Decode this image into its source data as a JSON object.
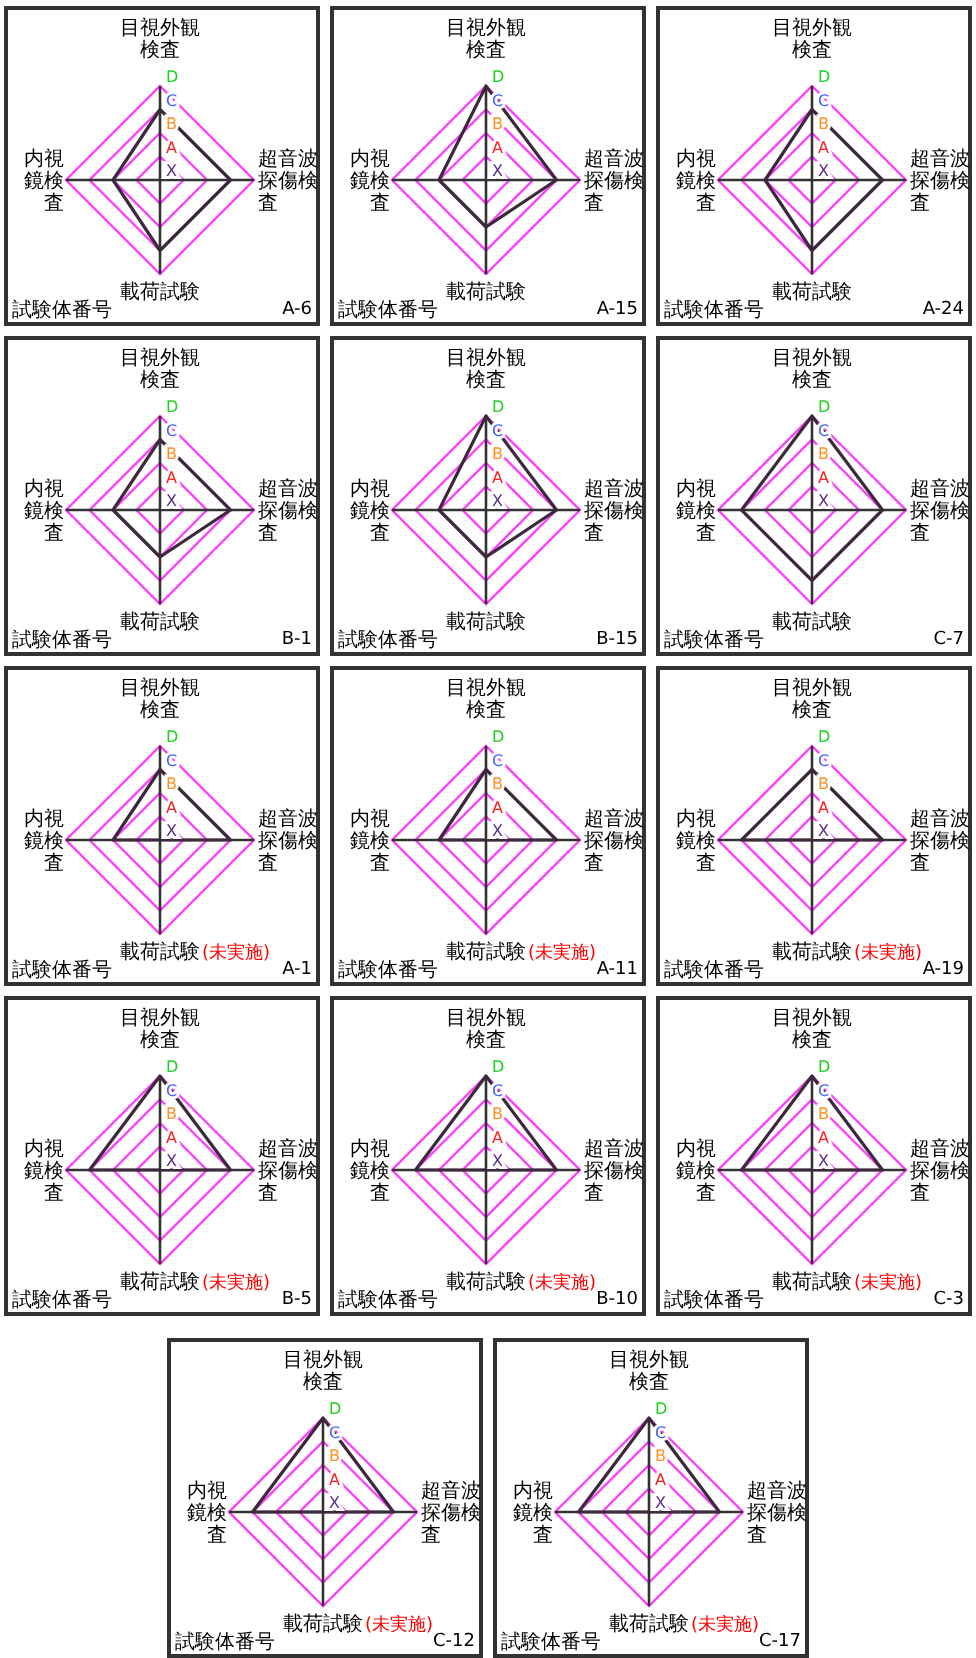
{
  "chart_data": [
    {
      "type": "radar",
      "title": "A-6",
      "categories": [
        "目視外観検査",
        "超音波探傷検査",
        "載荷試験",
        "内視鏡検査"
      ],
      "series": [
        {
          "color": "#3c2a3c",
          "values": [
            3,
            3,
            3,
            2
          ]
        }
      ],
      "ylim": [
        0,
        4
      ],
      "yticks": [
        {
          "value": 0,
          "label": "X"
        },
        {
          "value": 1,
          "label": "A"
        },
        {
          "value": 2,
          "label": "B"
        },
        {
          "value": 3,
          "label": "C"
        },
        {
          "value": 4,
          "label": "D"
        }
      ],
      "grid": true,
      "annotations": [
        "試験体番号"
      ]
    },
    {
      "type": "radar",
      "title": "A-15",
      "categories": [
        "目視外観検査",
        "超音波探傷検査",
        "載荷試験",
        "内視鏡検査"
      ],
      "series": [
        {
          "color": "#3c2a3c",
          "values": [
            4,
            3,
            2,
            2
          ]
        }
      ],
      "ylim": [
        0,
        4
      ],
      "yticks": [
        {
          "value": 0,
          "label": "X"
        },
        {
          "value": 1,
          "label": "A"
        },
        {
          "value": 2,
          "label": "B"
        },
        {
          "value": 3,
          "label": "C"
        },
        {
          "value": 4,
          "label": "D"
        }
      ],
      "grid": true,
      "annotations": [
        "試験体番号"
      ]
    },
    {
      "type": "radar",
      "title": "A-24",
      "categories": [
        "目視外観検査",
        "超音波探傷検査",
        "載荷試験",
        "内視鏡検査"
      ],
      "series": [
        {
          "color": "#3c2a3c",
          "values": [
            3,
            3,
            3,
            2
          ]
        }
      ],
      "ylim": [
        0,
        4
      ],
      "yticks": [
        {
          "value": 0,
          "label": "X"
        },
        {
          "value": 1,
          "label": "A"
        },
        {
          "value": 2,
          "label": "B"
        },
        {
          "value": 3,
          "label": "C"
        },
        {
          "value": 4,
          "label": "D"
        }
      ],
      "grid": true,
      "annotations": [
        "試験体番号"
      ]
    },
    {
      "type": "radar",
      "title": "B-1",
      "categories": [
        "目視外観検査",
        "超音波探傷検査",
        "載荷試験",
        "内視鏡検査"
      ],
      "series": [
        {
          "color": "#3c2a3c",
          "values": [
            3,
            3,
            2,
            2
          ]
        }
      ],
      "ylim": [
        0,
        4
      ],
      "yticks": [
        {
          "value": 0,
          "label": "X"
        },
        {
          "value": 1,
          "label": "A"
        },
        {
          "value": 2,
          "label": "B"
        },
        {
          "value": 3,
          "label": "C"
        },
        {
          "value": 4,
          "label": "D"
        }
      ],
      "grid": true,
      "annotations": [
        "試験体番号"
      ]
    },
    {
      "type": "radar",
      "title": "B-15",
      "categories": [
        "目視外観検査",
        "超音波探傷検査",
        "載荷試験",
        "内視鏡検査"
      ],
      "series": [
        {
          "color": "#3c2a3c",
          "values": [
            4,
            3,
            2,
            2
          ]
        }
      ],
      "ylim": [
        0,
        4
      ],
      "yticks": [
        {
          "value": 0,
          "label": "X"
        },
        {
          "value": 1,
          "label": "A"
        },
        {
          "value": 2,
          "label": "B"
        },
        {
          "value": 3,
          "label": "C"
        },
        {
          "value": 4,
          "label": "D"
        }
      ],
      "grid": true,
      "annotations": [
        "試験体番号"
      ]
    },
    {
      "type": "radar",
      "title": "C-7",
      "categories": [
        "目視外観検査",
        "超音波探傷検査",
        "載荷試験",
        "内視鏡検査"
      ],
      "series": [
        {
          "color": "#3c2a3c",
          "values": [
            4,
            3,
            3,
            3
          ]
        }
      ],
      "ylim": [
        0,
        4
      ],
      "yticks": [
        {
          "value": 0,
          "label": "X"
        },
        {
          "value": 1,
          "label": "A"
        },
        {
          "value": 2,
          "label": "B"
        },
        {
          "value": 3,
          "label": "C"
        },
        {
          "value": 4,
          "label": "D"
        }
      ],
      "grid": true,
      "annotations": [
        "試験体番号"
      ]
    },
    {
      "type": "radar",
      "title": "A-1",
      "categories": [
        "目視外観検査",
        "超音波探傷検査",
        "載荷試験",
        "内視鏡検査"
      ],
      "series": [
        {
          "color": "#3c2a3c",
          "values": [
            3,
            3,
            null,
            2
          ]
        }
      ],
      "ylim": [
        0,
        4
      ],
      "yticks": [
        {
          "value": 0,
          "label": "X"
        },
        {
          "value": 1,
          "label": "A"
        },
        {
          "value": 2,
          "label": "B"
        },
        {
          "value": 3,
          "label": "C"
        },
        {
          "value": 4,
          "label": "D"
        }
      ],
      "grid": true,
      "annotations": [
        "試験体番号",
        "(未実施)"
      ]
    },
    {
      "type": "radar",
      "title": "A-11",
      "categories": [
        "目視外観検査",
        "超音波探傷検査",
        "載荷試験",
        "内視鏡検査"
      ],
      "series": [
        {
          "color": "#3c2a3c",
          "values": [
            3,
            3,
            null,
            2
          ]
        }
      ],
      "ylim": [
        0,
        4
      ],
      "yticks": [
        {
          "value": 0,
          "label": "X"
        },
        {
          "value": 1,
          "label": "A"
        },
        {
          "value": 2,
          "label": "B"
        },
        {
          "value": 3,
          "label": "C"
        },
        {
          "value": 4,
          "label": "D"
        }
      ],
      "grid": true,
      "annotations": [
        "試験体番号",
        "(未実施)"
      ]
    },
    {
      "type": "radar",
      "title": "A-19",
      "categories": [
        "目視外観検査",
        "超音波探傷検査",
        "載荷試験",
        "内視鏡検査"
      ],
      "series": [
        {
          "color": "#3c2a3c",
          "values": [
            3,
            3,
            null,
            3
          ]
        }
      ],
      "ylim": [
        0,
        4
      ],
      "yticks": [
        {
          "value": 0,
          "label": "X"
        },
        {
          "value": 1,
          "label": "A"
        },
        {
          "value": 2,
          "label": "B"
        },
        {
          "value": 3,
          "label": "C"
        },
        {
          "value": 4,
          "label": "D"
        }
      ],
      "grid": true,
      "annotations": [
        "試験体番号",
        "(未実施)"
      ]
    },
    {
      "type": "radar",
      "title": "B-5",
      "categories": [
        "目視外観検査",
        "超音波探傷検査",
        "載荷試験",
        "内視鏡検査"
      ],
      "series": [
        {
          "color": "#3c2a3c",
          "values": [
            4,
            3,
            null,
            3
          ]
        }
      ],
      "ylim": [
        0,
        4
      ],
      "yticks": [
        {
          "value": 0,
          "label": "X"
        },
        {
          "value": 1,
          "label": "A"
        },
        {
          "value": 2,
          "label": "B"
        },
        {
          "value": 3,
          "label": "C"
        },
        {
          "value": 4,
          "label": "D"
        }
      ],
      "grid": true,
      "annotations": [
        "試験体番号",
        "(未実施)"
      ]
    },
    {
      "type": "radar",
      "title": "B-10",
      "categories": [
        "目視外観検査",
        "超音波探傷検査",
        "載荷試験",
        "内視鏡検査"
      ],
      "series": [
        {
          "color": "#3c2a3c",
          "values": [
            4,
            3,
            null,
            3
          ]
        }
      ],
      "ylim": [
        0,
        4
      ],
      "yticks": [
        {
          "value": 0,
          "label": "X"
        },
        {
          "value": 1,
          "label": "A"
        },
        {
          "value": 2,
          "label": "B"
        },
        {
          "value": 3,
          "label": "C"
        },
        {
          "value": 4,
          "label": "D"
        }
      ],
      "grid": true,
      "annotations": [
        "試験体番号",
        "(未実施)"
      ]
    },
    {
      "type": "radar",
      "title": "C-3",
      "categories": [
        "目視外観検査",
        "超音波探傷検査",
        "載荷試験",
        "内視鏡検査"
      ],
      "series": [
        {
          "color": "#3c2a3c",
          "values": [
            4,
            3,
            null,
            3
          ]
        }
      ],
      "ylim": [
        0,
        4
      ],
      "yticks": [
        {
          "value": 0,
          "label": "X"
        },
        {
          "value": 1,
          "label": "A"
        },
        {
          "value": 2,
          "label": "B"
        },
        {
          "value": 3,
          "label": "C"
        },
        {
          "value": 4,
          "label": "D"
        }
      ],
      "grid": true,
      "annotations": [
        "試験体番号",
        "(未実施)"
      ]
    },
    {
      "type": "radar",
      "title": "C-12",
      "categories": [
        "目視外観検査",
        "超音波探傷検査",
        "載荷試験",
        "内視鏡検査"
      ],
      "series": [
        {
          "color": "#3c2a3c",
          "values": [
            4,
            3,
            null,
            3
          ]
        }
      ],
      "ylim": [
        0,
        4
      ],
      "yticks": [
        {
          "value": 0,
          "label": "X"
        },
        {
          "value": 1,
          "label": "A"
        },
        {
          "value": 2,
          "label": "B"
        },
        {
          "value": 3,
          "label": "C"
        },
        {
          "value": 4,
          "label": "D"
        }
      ],
      "grid": true,
      "annotations": [
        "試験体番号",
        "(未実施)"
      ]
    },
    {
      "type": "radar",
      "title": "C-17",
      "categories": [
        "目視外観検査",
        "超音波探傷検査",
        "載荷試験",
        "内視鏡検査"
      ],
      "series": [
        {
          "color": "#3c2a3c",
          "values": [
            4,
            3,
            null,
            3
          ]
        }
      ],
      "ylim": [
        0,
        4
      ],
      "yticks": [
        {
          "value": 0,
          "label": "X"
        },
        {
          "value": 1,
          "label": "A"
        },
        {
          "value": 2,
          "label": "B"
        },
        {
          "value": 3,
          "label": "C"
        },
        {
          "value": 4,
          "label": "D"
        }
      ],
      "grid": true,
      "annotations": [
        "試験体番号",
        "(未実施)"
      ]
    }
  ]
}
